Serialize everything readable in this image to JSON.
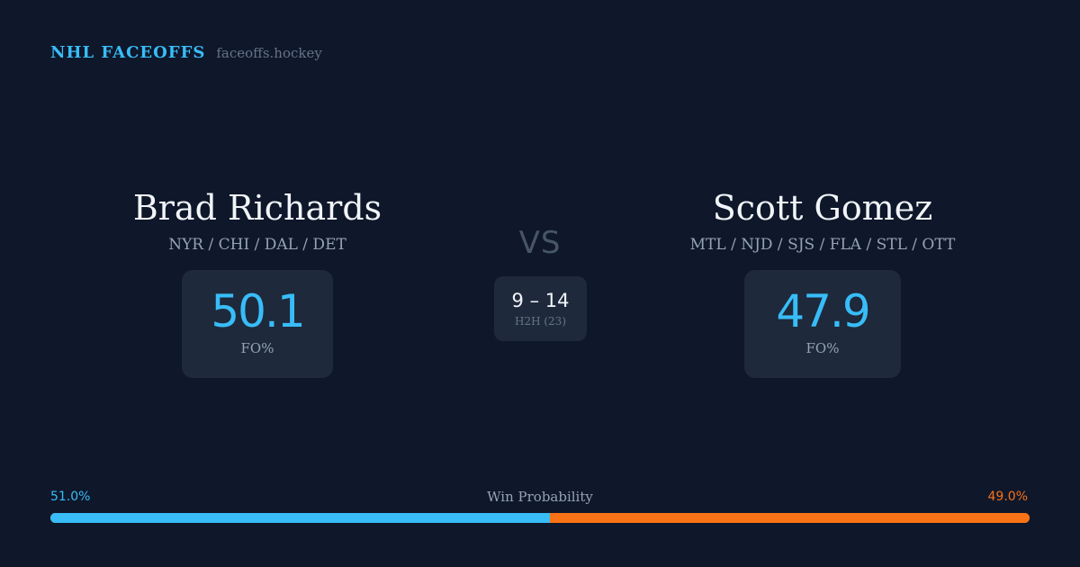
{
  "brand": {
    "title": "NHL FACEOFFS",
    "site": "faceoffs.hockey"
  },
  "players": {
    "left": {
      "name": "Brad Richards",
      "teams": "NYR / CHI / DAL / DET",
      "fo_pct": "50.1",
      "fo_label": "FO%"
    },
    "right": {
      "name": "Scott Gomez",
      "teams": "MTL / NJD / SJS / FLA / STL / OTT",
      "fo_pct": "47.9",
      "fo_label": "FO%"
    }
  },
  "versus": {
    "label": "VS",
    "score": "9 – 14",
    "h2h_label": "H2H (23)"
  },
  "win_probability": {
    "title": "Win Probability",
    "left_label": "51.0%",
    "right_label": "49.0%",
    "left_value": 51.0,
    "right_value": 49.0,
    "left_color": "#38bdf8",
    "right_color": "#f97316"
  }
}
